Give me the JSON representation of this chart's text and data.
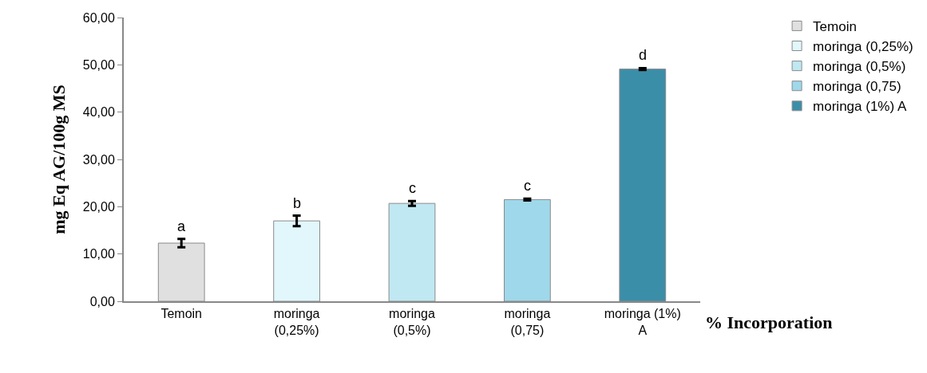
{
  "chart_data": {
    "type": "bar",
    "ylabel": "mg Eq AG/100g MS",
    "xlabel": "% Incorporation",
    "categories": [
      "Temoin",
      "moringa (0,25%)",
      "moringa (0,5%)",
      "moringa (0,75)",
      "moringa (1%) A"
    ],
    "series": [
      {
        "name": "Temoin",
        "color": "#e0e0e0",
        "values": [
          12.3,
          null,
          null,
          null,
          null
        ],
        "errors": [
          0.9,
          null,
          null,
          null,
          null
        ]
      },
      {
        "name": "moringa (0,25%)",
        "color": "#e2f7fb",
        "values": [
          null,
          17.0,
          null,
          null,
          null
        ],
        "errors": [
          null,
          1.1,
          null,
          null,
          null
        ]
      },
      {
        "name": "moringa (0,5%)",
        "color": "#c0e8f2",
        "values": [
          null,
          null,
          20.7,
          null,
          null
        ],
        "errors": [
          null,
          null,
          0.5,
          null,
          null
        ]
      },
      {
        "name": "moringa (0,75)",
        "color": "#9fd8ea",
        "values": [
          null,
          null,
          null,
          21.5,
          null
        ],
        "errors": [
          null,
          null,
          null,
          0.2,
          null
        ]
      },
      {
        "name": "moringa (1%) A",
        "color": "#3b8ea8",
        "values": [
          null,
          null,
          null,
          null,
          49.1
        ],
        "errors": [
          null,
          null,
          null,
          null,
          0.2
        ]
      }
    ],
    "annotations": [
      {
        "text": "a",
        "x": "Temoin",
        "y": 13.2
      },
      {
        "text": "b",
        "x": "moringa (0,25%)",
        "y": 18.1
      },
      {
        "text": "c",
        "x": "moringa (0,5%)",
        "y": 21.2
      },
      {
        "text": "c",
        "x": "moringa (0,75)",
        "y": 21.7
      },
      {
        "text": "d",
        "x": "moringa (1%) A",
        "y": 49.3
      }
    ],
    "ylim": [
      0,
      60
    ],
    "yticks": [
      {
        "value": 0,
        "label": "0,00"
      },
      {
        "value": 10,
        "label": "10,00"
      },
      {
        "value": 20,
        "label": "20,00"
      },
      {
        "value": 30,
        "label": "30,00"
      },
      {
        "value": 40,
        "label": "40,00"
      },
      {
        "value": 50,
        "label": "50,00"
      },
      {
        "value": 60,
        "label": "60,00"
      }
    ],
    "grid": false,
    "legend": "right"
  }
}
